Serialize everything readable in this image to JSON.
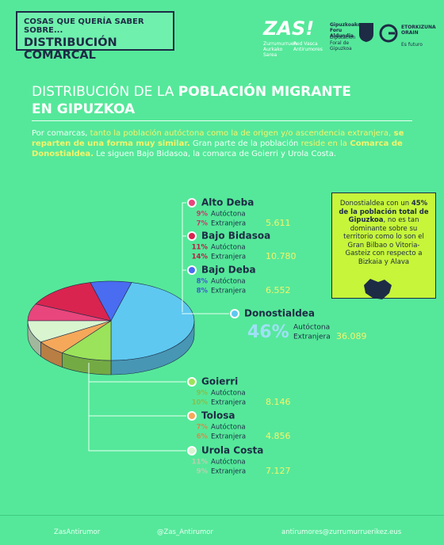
{
  "header": {
    "kicker": "COSAS QUE QUERÍA SABER SOBRE...",
    "title": "DISTRIBUCIÓN COMARCAL",
    "logos": [
      "ZAS!",
      "Zurrumurruen Aurkako Sarea",
      "Red Vasca Antirumores",
      "Gipuzkoako Foru Aldundia",
      "Diputación Foral de Gipuzkoa",
      "ETORKIZUNA ORAIN",
      "Es futuro"
    ]
  },
  "title": [
    "DISTRIBUCIÓN DE LA ",
    "POBLACIÓN MIGRANTE",
    "EN GIPUZKOA"
  ],
  "intro": [
    "Por comarcas, ",
    "tanto la población autóctona como la de origen y/o ascendencia extranjera,",
    " se reparten de una forma muy similar.",
    " Gran parte de la población ",
    "reside en la",
    " Comarca de Donostialdea.",
    " Le siguen Bajo Bidasoa, la comarca de Goierri y Urola Costa."
  ],
  "callout": [
    "Donostialdea con un ",
    "45% de la población total de Gipuzkoa",
    ", no es tan dominante sobre su territorio como lo son el Gran Bilbao o Vitoria-Gasteiz con respecto a Bizkaia y Alava"
  ],
  "chart_data": {
    "type": "pie",
    "categories": [
      "Alto Deba",
      "Bajo Bidasoa",
      "Bajo Deba",
      "Donostialdea",
      "Goierri",
      "Tolosa",
      "Urola Costa"
    ],
    "colors": [
      "#e8467c",
      "#d9244f",
      "#4a6cf0",
      "#5ec8f0",
      "#9be35a",
      "#f5a85a",
      "#d8f5d0"
    ],
    "series": [
      {
        "name": "Autóctona",
        "values": [
          9,
          11,
          8,
          null,
          9,
          7,
          11
        ],
        "value_labels": [
          "9%",
          "11%",
          "8%",
          null,
          "9%",
          "7%",
          "11%"
        ]
      },
      {
        "name": "Extranjera",
        "values": [
          7,
          14,
          8,
          46,
          10,
          6,
          9
        ],
        "value_labels": [
          "7%",
          "14%",
          "8%",
          "46%",
          "10%",
          "6%",
          "9%"
        ]
      }
    ],
    "counts": {
      "values": [
        5611,
        10780,
        6552,
        36089,
        8146,
        4856,
        7127
      ],
      "value_labels": [
        "5.611",
        "10.780",
        "6.552",
        "36.089",
        "8.146",
        "4.856",
        "7.127"
      ]
    }
  },
  "footer": [
    "ZasAntirumor",
    "@Zas_Antirumor",
    "antirumores@zurrumurruerikez.eus"
  ]
}
